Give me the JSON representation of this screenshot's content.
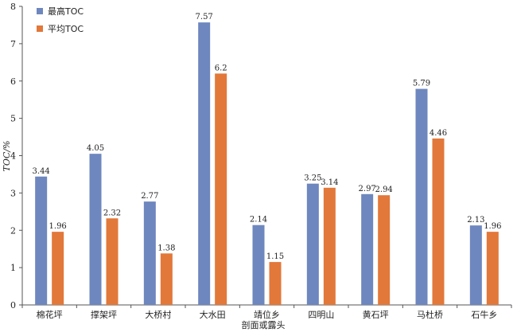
{
  "chart_data": {
    "type": "bar",
    "categories": [
      "棉花坪",
      "撑架坪",
      "大桥村",
      "大水田",
      "靖位乡",
      "四明山",
      "黄石坪",
      "马杜桥",
      "石牛乡"
    ],
    "series": [
      {
        "name": "最高TOC",
        "color": "#6e87be",
        "values": [
          3.44,
          4.05,
          2.77,
          7.57,
          2.14,
          3.25,
          2.97,
          5.79,
          2.13
        ]
      },
      {
        "name": "平均TOC",
        "color": "#e2783a",
        "values": [
          1.96,
          2.32,
          1.38,
          6.2,
          1.15,
          3.14,
          2.94,
          4.46,
          1.96
        ]
      }
    ],
    "data_labels": [
      [
        "3.44",
        "4.05",
        "2.77",
        "7.57",
        "2.14",
        "3.25",
        "2.97",
        "5.79",
        "2.13"
      ],
      [
        "1.96",
        "2.32",
        "1.38",
        "6.2",
        "1.15",
        "3.14",
        "2.94",
        "4.46",
        "1.96"
      ]
    ],
    "ylim": [
      0,
      8
    ],
    "yticks": [
      0,
      1,
      2,
      3,
      4,
      5,
      6,
      7,
      8
    ],
    "xlabel": "剖面或露头",
    "ylabel": "TOC/%",
    "legend": "top-left",
    "grid": false
  }
}
